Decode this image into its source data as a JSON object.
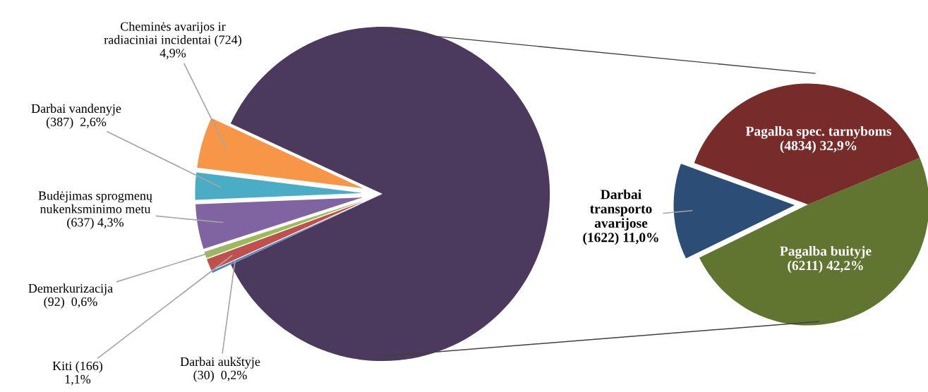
{
  "chart_data": [
    {
      "type": "pie",
      "categories": [
        null,
        "Cheminės avarijos ir\nradiaciniai incidentai",
        "Darbai vandenyje",
        "Budėjimas sprogmenų\nnukenksminimo metu",
        "Demerkurizacija",
        "Kiti",
        "Darbai aukštyje"
      ],
      "values": [
        12667,
        724,
        387,
        637,
        92,
        166,
        30
      ],
      "colors": [
        "#4b3a5e",
        "#f79646",
        "#4bacc6",
        "#8064a2",
        "#9bbb59",
        "#c0504d",
        "#4f81bd"
      ],
      "value_labels": [
        null,
        "(724)\n4,9%",
        "(387)  2,6%",
        "(637) 4,3%",
        "(92)  0,6%",
        "(166)\n1,1%",
        "(30)  0,2%"
      ]
    },
    {
      "type": "pie",
      "categories": [
        "Darbai\ntransporto\navarijose",
        "Pagalba buityje",
        "Pagalba spec. tarnyboms"
      ],
      "values": [
        1622,
        6211,
        4834
      ],
      "colors": [
        "#2c4d75",
        "#5f7530",
        "#772c2a"
      ],
      "value_labels": [
        "(1622) 11,0%",
        "(6211) 42,2%",
        "(4834) 32,9%"
      ]
    }
  ]
}
